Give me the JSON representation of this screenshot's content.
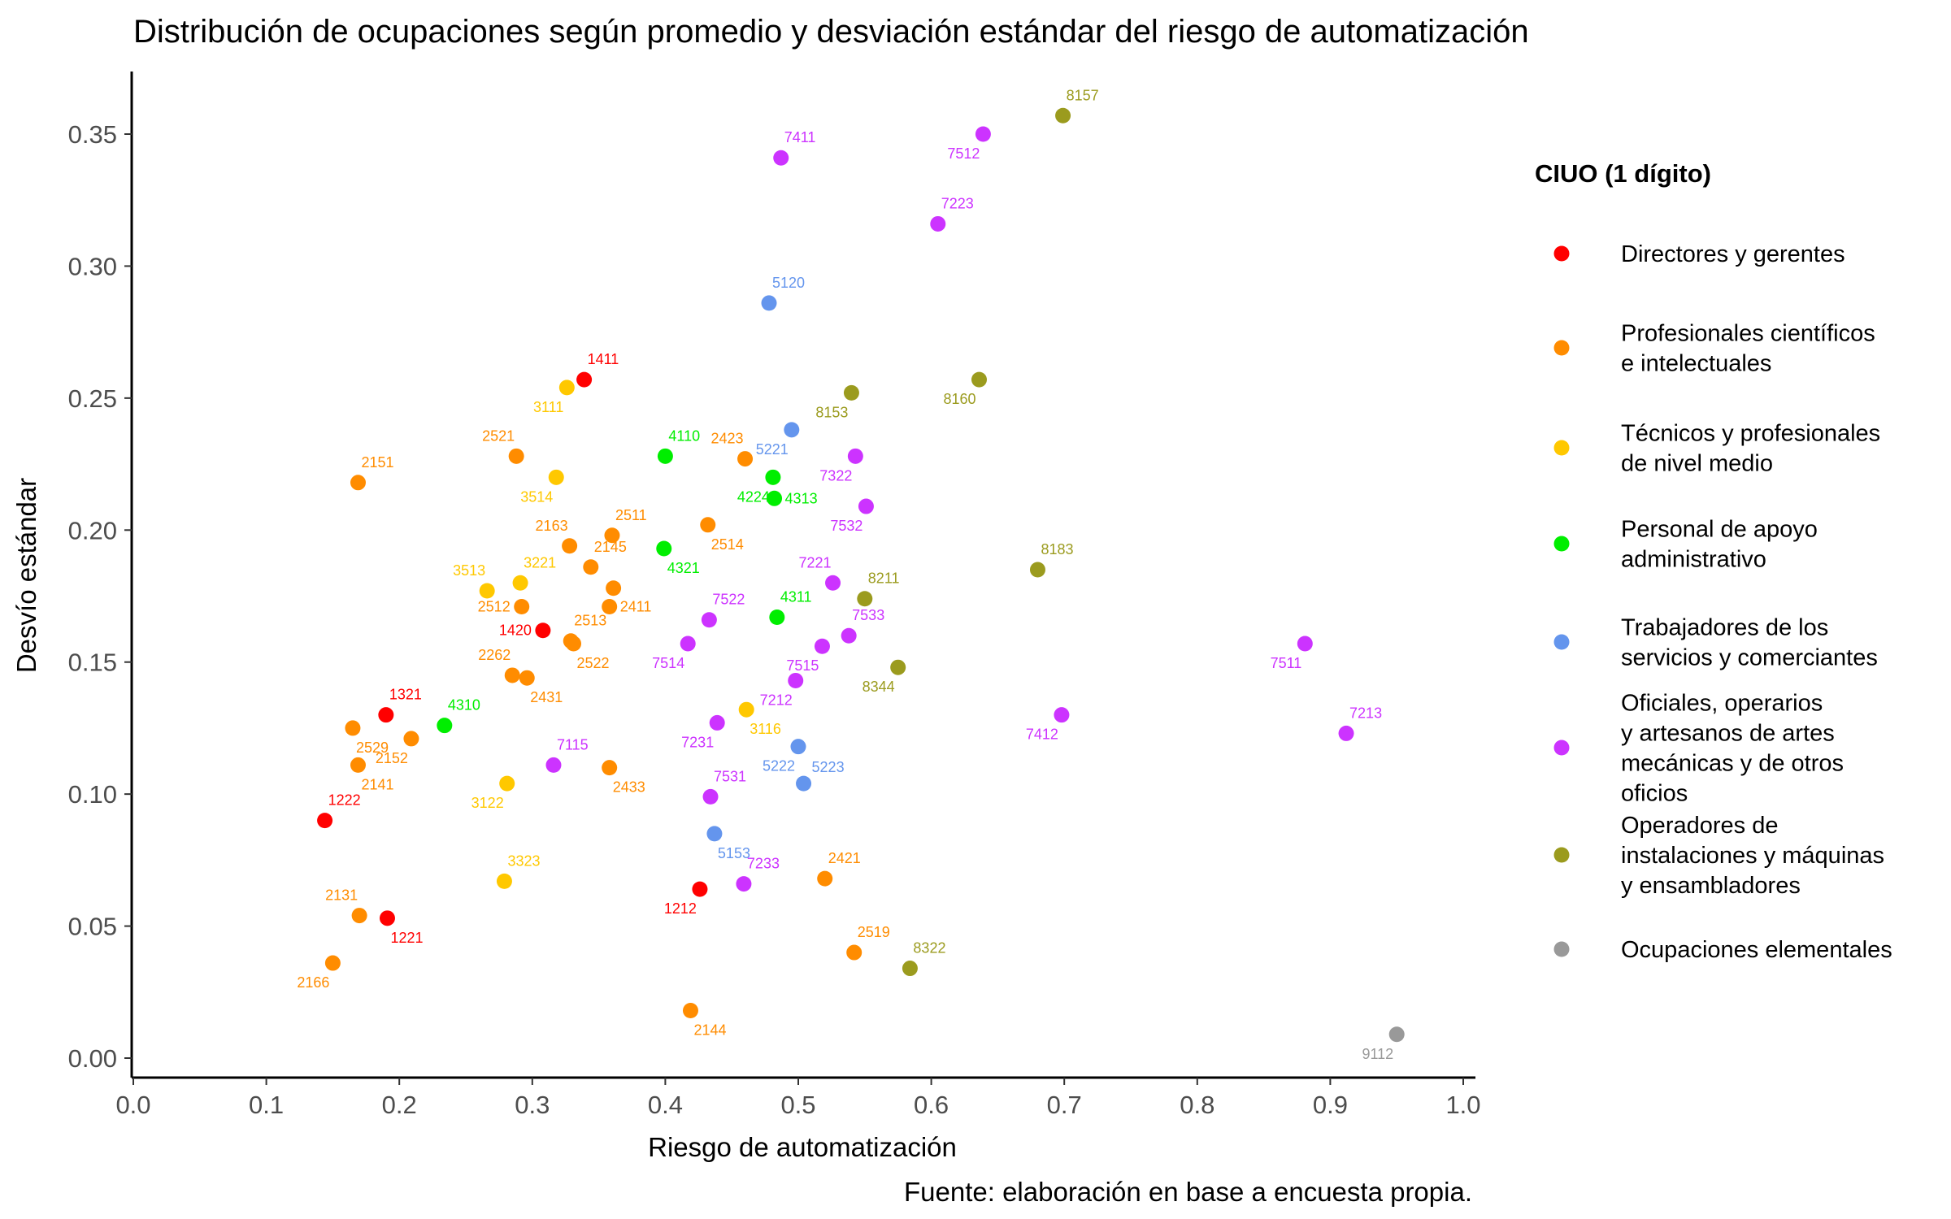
{
  "chart_data": {
    "type": "scatter",
    "title": "Distribución de ocupaciones según promedio y desviación estándar del riesgo de automatización",
    "xlabel": "Riesgo de automatización",
    "ylabel": "Desvío estándar",
    "caption": "Fuente: elaboración en base a encuesta propia.",
    "xlim": [
      0,
      1
    ],
    "ylim": [
      0,
      0.35
    ],
    "xticks": [
      0,
      0.1,
      0.2,
      0.3,
      0.4,
      0.5,
      0.6,
      0.7,
      0.8,
      0.9,
      1.0
    ],
    "xtick_labels": [
      "0.0",
      "0.1",
      "0.2",
      "0.3",
      "0.4",
      "0.5",
      "0.6",
      "0.7",
      "0.8",
      "0.9",
      "1.0"
    ],
    "yticks": [
      0,
      0.05,
      0.1,
      0.15,
      0.2,
      0.25,
      0.3,
      0.35
    ],
    "ytick_labels": [
      "0.00",
      "0.05",
      "0.10",
      "0.15",
      "0.20",
      "0.25",
      "0.30",
      "0.35"
    ],
    "grid": false,
    "legend_position": "right",
    "legend_title": "CIUO (1 dígito)",
    "series": [
      {
        "name": "Directores y gerentes",
        "label_lines": [
          "Directores y gerentes"
        ],
        "color": "#FF0000",
        "points": [
          {
            "x": 0.339,
            "y": 0.257,
            "label": "1411",
            "pos": "above"
          },
          {
            "x": 0.308,
            "y": 0.162,
            "label": "1420",
            "pos": "left"
          },
          {
            "x": 0.19,
            "y": 0.13,
            "label": "1321",
            "pos": "above"
          },
          {
            "x": 0.144,
            "y": 0.09,
            "label": "1222",
            "pos": "above"
          },
          {
            "x": 0.191,
            "y": 0.053,
            "label": "1221",
            "pos": "below"
          },
          {
            "x": 0.426,
            "y": 0.064,
            "label": "1212",
            "pos": "below-left"
          }
        ]
      },
      {
        "name": "Profesionales científicos e intelectuales",
        "label_lines": [
          "Profesionales científicos",
          "e intelectuales"
        ],
        "color": "#FF8C00",
        "points": [
          {
            "x": 0.169,
            "y": 0.218,
            "label": "2151",
            "pos": "above"
          },
          {
            "x": 0.288,
            "y": 0.228,
            "label": "2521",
            "pos": "above-left"
          },
          {
            "x": 0.46,
            "y": 0.227,
            "label": "2423",
            "pos": "above-left"
          },
          {
            "x": 0.328,
            "y": 0.194,
            "label": "2163",
            "pos": "above-left"
          },
          {
            "x": 0.36,
            "y": 0.198,
            "label": "2511",
            "pos": "above"
          },
          {
            "x": 0.432,
            "y": 0.202,
            "label": "2514",
            "pos": "below"
          },
          {
            "x": 0.344,
            "y": 0.186,
            "label": "2145",
            "pos": "above"
          },
          {
            "x": 0.292,
            "y": 0.171,
            "label": "2512",
            "pos": "left"
          },
          {
            "x": 0.358,
            "y": 0.171,
            "label": "2411",
            "pos": "right"
          },
          {
            "x": 0.361,
            "y": 0.178,
            "label": "",
            "pos": "none"
          },
          {
            "x": 0.329,
            "y": 0.158,
            "label": "2513",
            "pos": "above"
          },
          {
            "x": 0.331,
            "y": 0.157,
            "label": "2522",
            "pos": "below"
          },
          {
            "x": 0.285,
            "y": 0.145,
            "label": "2262",
            "pos": "above-left"
          },
          {
            "x": 0.296,
            "y": 0.144,
            "label": "2431",
            "pos": "below"
          },
          {
            "x": 0.165,
            "y": 0.125,
            "label": "2529",
            "pos": "below"
          },
          {
            "x": 0.209,
            "y": 0.121,
            "label": "2152",
            "pos": "below-left"
          },
          {
            "x": 0.169,
            "y": 0.111,
            "label": "2141",
            "pos": "below"
          },
          {
            "x": 0.358,
            "y": 0.11,
            "label": "2433",
            "pos": "below"
          },
          {
            "x": 0.17,
            "y": 0.054,
            "label": "2131",
            "pos": "above-left"
          },
          {
            "x": 0.15,
            "y": 0.036,
            "label": "2166",
            "pos": "below-left"
          },
          {
            "x": 0.52,
            "y": 0.068,
            "label": "2421",
            "pos": "above"
          },
          {
            "x": 0.542,
            "y": 0.04,
            "label": "2519",
            "pos": "above"
          },
          {
            "x": 0.419,
            "y": 0.018,
            "label": "2144",
            "pos": "below"
          }
        ]
      },
      {
        "name": "Técnicos y profesionales de nivel medio",
        "label_lines": [
          "Técnicos y profesionales",
          "de nivel medio"
        ],
        "color": "#FFC800",
        "points": [
          {
            "x": 0.326,
            "y": 0.254,
            "label": "3111",
            "pos": "below-left"
          },
          {
            "x": 0.318,
            "y": 0.22,
            "label": "3514",
            "pos": "below-left"
          },
          {
            "x": 0.266,
            "y": 0.177,
            "label": "3513",
            "pos": "above-left"
          },
          {
            "x": 0.291,
            "y": 0.18,
            "label": "3221",
            "pos": "above"
          },
          {
            "x": 0.461,
            "y": 0.132,
            "label": "3116",
            "pos": "below"
          },
          {
            "x": 0.281,
            "y": 0.104,
            "label": "3122",
            "pos": "below-left"
          },
          {
            "x": 0.279,
            "y": 0.067,
            "label": "3323",
            "pos": "above"
          }
        ]
      },
      {
        "name": "Personal de apoyo administrativo",
        "label_lines": [
          "Personal de apoyo",
          "administrativo"
        ],
        "color": "#00EE00",
        "points": [
          {
            "x": 0.4,
            "y": 0.228,
            "label": "4110",
            "pos": "above"
          },
          {
            "x": 0.481,
            "y": 0.22,
            "label": "4224",
            "pos": "below-left"
          },
          {
            "x": 0.482,
            "y": 0.212,
            "label": "4313",
            "pos": "right"
          },
          {
            "x": 0.399,
            "y": 0.193,
            "label": "4321",
            "pos": "below"
          },
          {
            "x": 0.484,
            "y": 0.167,
            "label": "4311",
            "pos": "above"
          },
          {
            "x": 0.234,
            "y": 0.126,
            "label": "4310",
            "pos": "above"
          }
        ]
      },
      {
        "name": "Trabajadores de los servicios y comerciantes",
        "label_lines": [
          "Trabajadores de los",
          "servicios y comerciantes"
        ],
        "color": "#6495ED",
        "points": [
          {
            "x": 0.478,
            "y": 0.286,
            "label": "5120",
            "pos": "above"
          },
          {
            "x": 0.495,
            "y": 0.238,
            "label": "5221",
            "pos": "below-left"
          },
          {
            "x": 0.5,
            "y": 0.118,
            "label": "5222",
            "pos": "below-left"
          },
          {
            "x": 0.504,
            "y": 0.104,
            "label": "5223",
            "pos": "above-right"
          },
          {
            "x": 0.437,
            "y": 0.085,
            "label": "5153",
            "pos": "below"
          }
        ]
      },
      {
        "name": "Oficiales, operarios y artesanos de artes mecánicas y de otros oficios",
        "label_lines": [
          "Oficiales, operarios",
          "y artesanos de artes",
          "mecánicas y de otros",
          "oficios"
        ],
        "color": "#CC33FF",
        "points": [
          {
            "x": 0.487,
            "y": 0.341,
            "label": "7411",
            "pos": "above"
          },
          {
            "x": 0.639,
            "y": 0.35,
            "label": "7512",
            "pos": "below-left"
          },
          {
            "x": 0.605,
            "y": 0.316,
            "label": "7223",
            "pos": "above"
          },
          {
            "x": 0.543,
            "y": 0.228,
            "label": "7322",
            "pos": "below-left"
          },
          {
            "x": 0.551,
            "y": 0.209,
            "label": "7532",
            "pos": "below-left"
          },
          {
            "x": 0.526,
            "y": 0.18,
            "label": "7221",
            "pos": "above-left"
          },
          {
            "x": 0.433,
            "y": 0.166,
            "label": "7522",
            "pos": "above"
          },
          {
            "x": 0.417,
            "y": 0.157,
            "label": "7514",
            "pos": "below-left"
          },
          {
            "x": 0.538,
            "y": 0.16,
            "label": "7533",
            "pos": "above"
          },
          {
            "x": 0.518,
            "y": 0.156,
            "label": "7515",
            "pos": "below-left"
          },
          {
            "x": 0.498,
            "y": 0.143,
            "label": "7212",
            "pos": "below-left"
          },
          {
            "x": 0.439,
            "y": 0.127,
            "label": "7231",
            "pos": "below-left"
          },
          {
            "x": 0.316,
            "y": 0.111,
            "label": "7115",
            "pos": "above"
          },
          {
            "x": 0.434,
            "y": 0.099,
            "label": "7531",
            "pos": "above"
          },
          {
            "x": 0.459,
            "y": 0.066,
            "label": "7233",
            "pos": "above"
          },
          {
            "x": 0.698,
            "y": 0.13,
            "label": "7412",
            "pos": "below-left"
          },
          {
            "x": 0.881,
            "y": 0.157,
            "label": "7511",
            "pos": "below-left"
          },
          {
            "x": 0.912,
            "y": 0.123,
            "label": "7213",
            "pos": "above"
          }
        ]
      },
      {
        "name": "Operadores de instalaciones y máquinas y ensambladores",
        "label_lines": [
          "Operadores de",
          "instalaciones y máquinas",
          "y ensambladores"
        ],
        "color": "#9B9B1E",
        "points": [
          {
            "x": 0.699,
            "y": 0.357,
            "label": "8157",
            "pos": "above"
          },
          {
            "x": 0.636,
            "y": 0.257,
            "label": "8160",
            "pos": "below-left"
          },
          {
            "x": 0.54,
            "y": 0.252,
            "label": "8153",
            "pos": "below-left"
          },
          {
            "x": 0.68,
            "y": 0.185,
            "label": "8183",
            "pos": "above"
          },
          {
            "x": 0.55,
            "y": 0.174,
            "label": "8211",
            "pos": "above"
          },
          {
            "x": 0.575,
            "y": 0.148,
            "label": "8344",
            "pos": "below-left"
          },
          {
            "x": 0.584,
            "y": 0.034,
            "label": "8322",
            "pos": "above"
          }
        ]
      },
      {
        "name": "Ocupaciones elementales",
        "label_lines": [
          "Ocupaciones elementales"
        ],
        "color": "#999999",
        "points": [
          {
            "x": 0.95,
            "y": 0.009,
            "label": "9112",
            "pos": "below-left"
          }
        ]
      }
    ]
  }
}
